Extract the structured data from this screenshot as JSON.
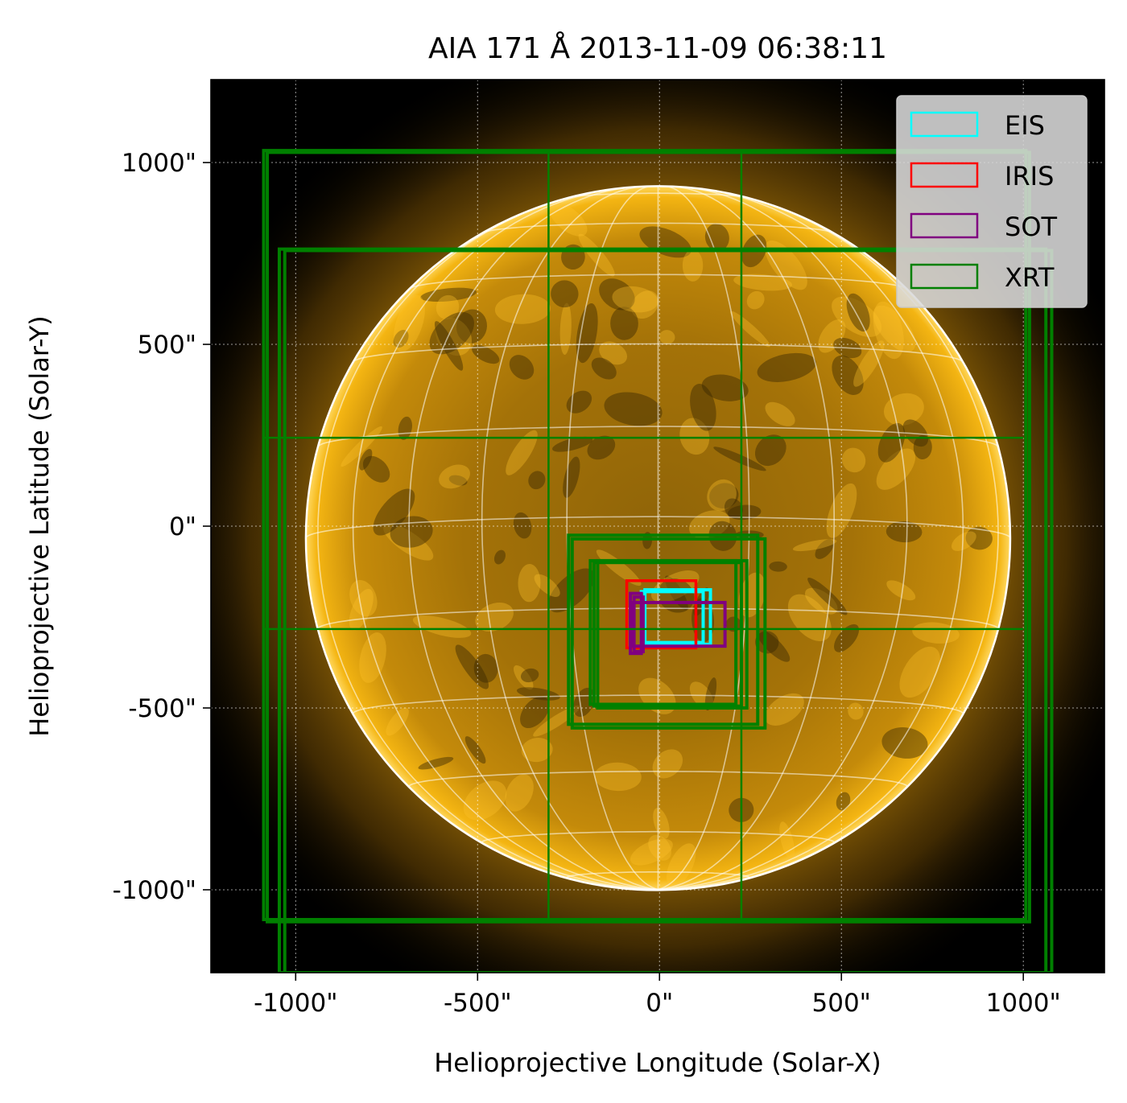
{
  "chart_data": {
    "type": "scatter",
    "title": "AIA 171 Å 2013-11-09 06:38:11",
    "xlabel": "Helioprojective Longitude (Solar-X)",
    "ylabel": "Helioprojective Latitude (Solar-Y)",
    "xlim": [
      -1233,
      1223
    ],
    "ylim": [
      -1228,
      1228
    ],
    "x_ticks": [
      {
        "value": -1000,
        "label": "-1000\""
      },
      {
        "value": -500,
        "label": "-500\""
      },
      {
        "value": 0,
        "label": "0\""
      },
      {
        "value": 500,
        "label": "500\""
      },
      {
        "value": 1000,
        "label": "1000\""
      }
    ],
    "y_ticks": [
      {
        "value": 1000,
        "label": "1000\""
      },
      {
        "value": 500,
        "label": "500\""
      },
      {
        "value": 0,
        "label": "0\""
      },
      {
        "value": -500,
        "label": "-500\""
      },
      {
        "value": -1000,
        "label": "-1000\""
      }
    ],
    "grid": true,
    "solar_radius_arcsec": 968,
    "disk_center": [
      -4,
      -33
    ],
    "legend_position": "top-right",
    "colors": {
      "EIS": "#00ffff",
      "IRIS": "#ff0000",
      "SOT": "#800080",
      "XRT": "#008000",
      "background": "#000000",
      "sun": "#e8a400"
    },
    "series": [
      {
        "name": "EIS",
        "boxes": [
          {
            "x": [
              -50,
              120
            ],
            "y": [
              -180,
              -320
            ]
          },
          {
            "x": [
              -40,
              140
            ],
            "y": [
              -175,
              -325
            ]
          }
        ]
      },
      {
        "name": "IRIS",
        "boxes": [
          {
            "x": [
              -90,
              100
            ],
            "y": [
              -150,
              -335
            ]
          }
        ]
      },
      {
        "name": "SOT",
        "boxes": [
          {
            "x": [
              -80,
              -50
            ],
            "y": [
              -185,
              -350
            ]
          },
          {
            "x": [
              -75,
              180
            ],
            "y": [
              -210,
              -330
            ]
          },
          {
            "x": [
              -70,
              -45
            ],
            "y": [
              -195,
              -345
            ]
          }
        ]
      },
      {
        "name": "XRT",
        "boxes": [
          {
            "x": [
              -1088,
              1007
            ],
            "y": [
              1033,
              -1082
            ]
          },
          {
            "x": [
              -1078,
              1017
            ],
            "y": [
              1028,
              -1088
            ]
          },
          {
            "x": [
              -1045,
              1062
            ],
            "y": [
              762,
              -1228
            ]
          },
          {
            "x": [
              -1030,
              1078
            ],
            "y": [
              758,
              -1228
            ]
          },
          {
            "x": [
              -1092,
              1000
            ],
            "y": [
              243,
              243
            ]
          },
          {
            "x": [
              -1092,
              1000
            ],
            "y": [
              -283,
              -283
            ]
          },
          {
            "x": [
              -305,
              -305
            ],
            "y": [
              1033,
              -1080
            ]
          },
          {
            "x": [
              225,
              225
            ],
            "y": [
              1033,
              -1080
            ]
          },
          {
            "x": [
              -250,
              270
            ],
            "y": [
              -25,
              -545
            ]
          },
          {
            "x": [
              -240,
              290
            ],
            "y": [
              -35,
              -555
            ]
          },
          {
            "x": [
              -190,
              210
            ],
            "y": [
              -95,
              -490
            ]
          },
          {
            "x": [
              -180,
              225
            ],
            "y": [
              -100,
              -495
            ]
          },
          {
            "x": [
              -170,
              240
            ],
            "y": [
              -95,
              -500
            ]
          }
        ]
      }
    ]
  }
}
